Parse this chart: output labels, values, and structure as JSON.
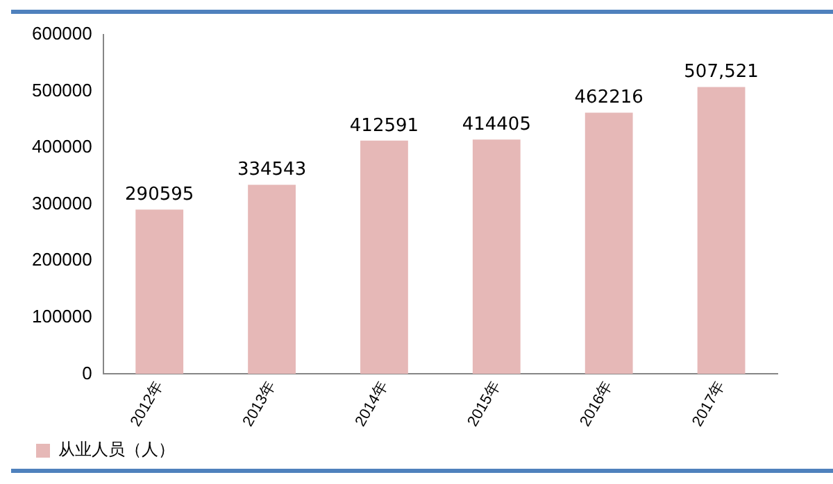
{
  "chart_data": {
    "type": "bar",
    "categories": [
      "2012年",
      "2013年",
      "2014年",
      "2015年",
      "2016年",
      "2017年"
    ],
    "series": [
      {
        "name": "从业人员（人）",
        "color": "#e6b8b7",
        "values": [
          290595,
          334543,
          412591,
          414405,
          462216,
          507521
        ],
        "value_labels": [
          "290595",
          "334543",
          "412591",
          "414405",
          "462216",
          "507,521"
        ]
      }
    ],
    "ylim": [
      0,
      600000
    ],
    "yticks": [
      0,
      100000,
      200000,
      300000,
      400000,
      500000,
      600000
    ],
    "grid": false,
    "legend": "bottom left"
  }
}
